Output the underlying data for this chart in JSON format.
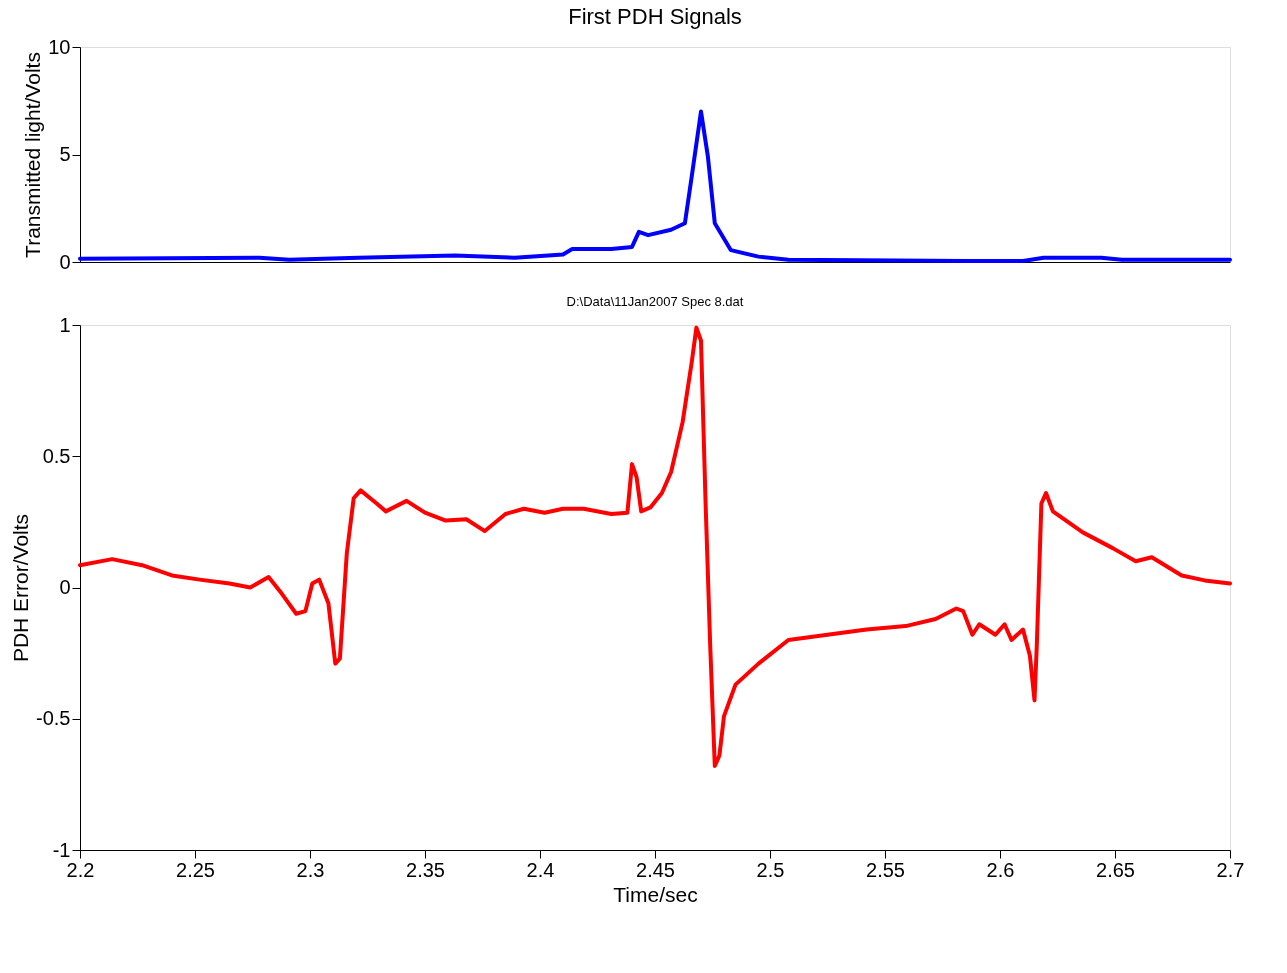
{
  "chart_data": [
    {
      "type": "line",
      "title": "First PDH Signals",
      "ylabel": "Transmitted light/Volts",
      "xlim": [
        2.2,
        2.7
      ],
      "ylim": [
        0,
        10
      ],
      "yticks": [
        0,
        5,
        10
      ],
      "tick_labels": "y",
      "grid": false,
      "series": [
        {
          "color": "#0000ff",
          "x": [
            2.2,
            2.278,
            2.291,
            2.321,
            2.363,
            2.389,
            2.41,
            2.414,
            2.431,
            2.44,
            2.443,
            2.447,
            2.457,
            2.463,
            2.466,
            2.47,
            2.473,
            2.476,
            2.483,
            2.495,
            2.508,
            2.585,
            2.61,
            2.619,
            2.644,
            2.653,
            2.7
          ],
          "values": [
            0.15,
            0.2,
            0.1,
            0.2,
            0.3,
            0.2,
            0.35,
            0.6,
            0.6,
            0.7,
            1.4,
            1.25,
            1.5,
            1.8,
            4.0,
            7.0,
            4.9,
            1.8,
            0.55,
            0.25,
            0.1,
            0.05,
            0.05,
            0.2,
            0.2,
            0.1,
            0.1
          ]
        }
      ]
    },
    {
      "type": "line",
      "title": "D:\\Data\\11Jan2007 Spec 8.dat",
      "xlabel": "Time/sec",
      "ylabel": "PDH Error/Volts",
      "xlim": [
        2.2,
        2.7
      ],
      "xticks": [
        2.2,
        2.25,
        2.3,
        2.35,
        2.4,
        2.45,
        2.5,
        2.55,
        2.6,
        2.65,
        2.7
      ],
      "ylim": [
        -1,
        1
      ],
      "yticks": [
        -1,
        -0.5,
        0,
        0.5,
        1
      ],
      "grid": false,
      "series": [
        {
          "color": "#ff0000",
          "x": [
            2.2,
            2.214,
            2.227,
            2.24,
            2.252,
            2.265,
            2.274,
            2.282,
            2.287,
            2.294,
            2.298,
            2.301,
            2.304,
            2.308,
            2.311,
            2.313,
            2.316,
            2.319,
            2.322,
            2.329,
            2.333,
            2.342,
            2.35,
            2.359,
            2.368,
            2.376,
            2.385,
            2.393,
            2.402,
            2.41,
            2.419,
            2.431,
            2.438,
            2.44,
            2.442,
            2.444,
            2.448,
            2.453,
            2.457,
            2.462,
            2.466,
            2.468,
            2.47,
            2.472,
            2.474,
            2.476,
            2.478,
            2.48,
            2.485,
            2.495,
            2.508,
            2.525,
            2.542,
            2.559,
            2.572,
            2.581,
            2.584,
            2.588,
            2.591,
            2.598,
            2.602,
            2.605,
            2.61,
            2.613,
            2.615,
            2.616,
            2.618,
            2.62,
            2.623,
            2.636,
            2.649,
            2.659,
            2.666,
            2.679,
            2.689,
            2.7
          ],
          "values": [
            0.085,
            0.108,
            0.085,
            0.046,
            0.03,
            0.015,
            0.0,
            0.04,
            -0.015,
            -0.1,
            -0.09,
            0.015,
            0.03,
            -0.06,
            -0.29,
            -0.27,
            0.13,
            0.34,
            0.37,
            0.32,
            0.29,
            0.33,
            0.285,
            0.255,
            0.26,
            0.215,
            0.28,
            0.3,
            0.285,
            0.3,
            0.3,
            0.28,
            0.285,
            0.47,
            0.42,
            0.29,
            0.305,
            0.36,
            0.44,
            0.63,
            0.86,
            0.99,
            0.94,
            0.32,
            -0.22,
            -0.68,
            -0.64,
            -0.49,
            -0.37,
            -0.29,
            -0.2,
            -0.18,
            -0.16,
            -0.147,
            -0.12,
            -0.08,
            -0.09,
            -0.18,
            -0.14,
            -0.18,
            -0.14,
            -0.2,
            -0.16,
            -0.26,
            -0.43,
            -0.22,
            0.32,
            0.36,
            0.29,
            0.21,
            0.15,
            0.1,
            0.115,
            0.046,
            0.027,
            0.015
          ]
        }
      ]
    }
  ]
}
